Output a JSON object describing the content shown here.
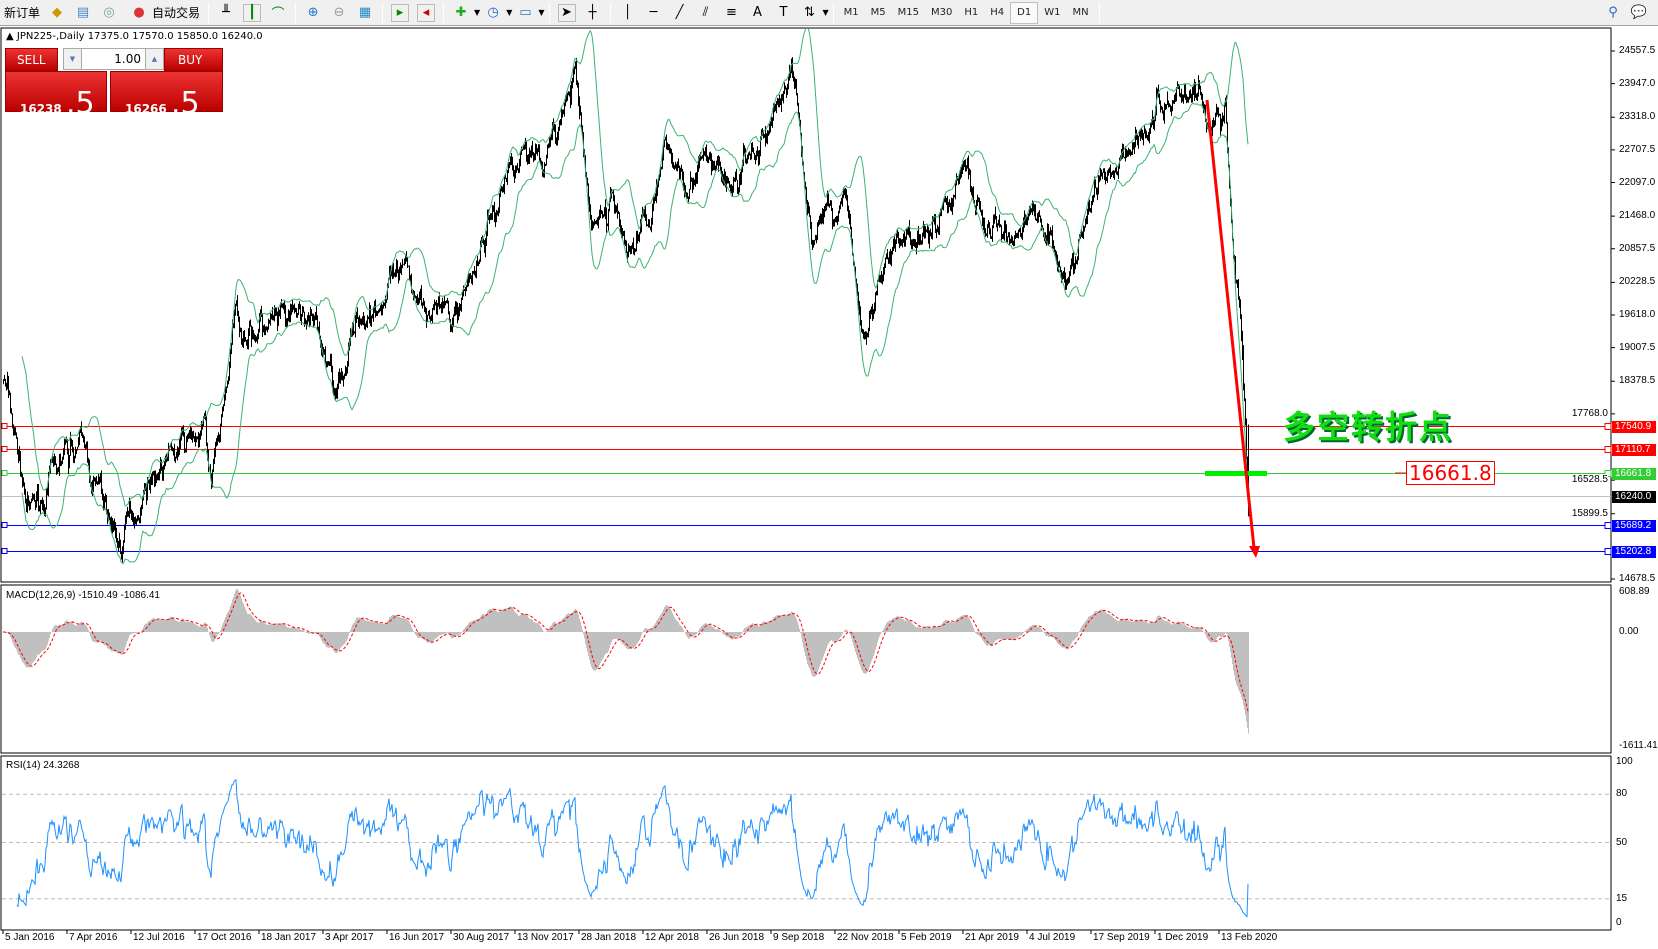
{
  "toolbar": {
    "new_order": "新订单",
    "auto_trading": "自动交易",
    "timeframes": [
      "M1",
      "M5",
      "M15",
      "M30",
      "H1",
      "H4",
      "D1",
      "W1",
      "MN"
    ],
    "active_timeframe": "D1"
  },
  "symbol_line": "JPN225-,Daily  17375.0 17570.0 15850.0 16240.0",
  "trade_panel": {
    "sell_label": "SELL",
    "buy_label": "BUY",
    "lots": "1.00",
    "sell_price_main": "16238",
    "sell_price_frac": ".5",
    "buy_price_main": "16266",
    "buy_price_frac": ".5"
  },
  "annotation": {
    "text": "多空转折点",
    "price_label": "16661.8",
    "color": "#10e010"
  },
  "chart_data": {
    "type": "candlestick",
    "symbol": "JPN225-",
    "timeframe": "Daily",
    "ohlc_last": {
      "open": 17375.0,
      "high": 17570.0,
      "low": 15850.0,
      "close": 16240.0
    },
    "ylim": [
      14678.5,
      24557.5
    ],
    "price_ticks": [
      "24557.5",
      "23947.0",
      "23318.0",
      "22707.5",
      "22097.0",
      "21468.0",
      "20857.5",
      "20228.5",
      "19618.0",
      "19007.5",
      "18378.5",
      "17768.0",
      "16528.5",
      "15899.5",
      "14678.5"
    ],
    "date_ticks": [
      "5 Jan 2016",
      "7 Apr 2016",
      "12 Jul 2016",
      "17 Oct 2016",
      "18 Jan 2017",
      "3 Apr 2017",
      "16 Jun 2017",
      "30 Aug 2017",
      "13 Nov 2017",
      "28 Jan 2018",
      "12 Apr 2018",
      "26 Jun 2018",
      "9 Sep 2018",
      "22 Nov 2018",
      "5 Feb 2019",
      "21 Apr 2019",
      "4 Jul 2019",
      "17 Sep 2019",
      "1 Dec 2019",
      "13 Feb 2020"
    ],
    "approx_close_path": [
      [
        "2016-01-05",
        18450
      ],
      [
        "2016-02-12",
        15800
      ],
      [
        "2016-03-30",
        16800
      ],
      [
        "2016-04-22",
        17300
      ],
      [
        "2016-06-24",
        15300
      ],
      [
        "2016-08-10",
        16700
      ],
      [
        "2016-10-30",
        17400
      ],
      [
        "2016-11-09",
        16300
      ],
      [
        "2016-12-14",
        19500
      ],
      [
        "2017-02-15",
        19300
      ],
      [
        "2017-03-15",
        19600
      ],
      [
        "2017-04-14",
        18400
      ],
      [
        "2017-05-20",
        19700
      ],
      [
        "2017-06-20",
        20100
      ],
      [
        "2017-08-08",
        20000
      ],
      [
        "2017-08-30",
        19400
      ],
      [
        "2017-10-05",
        21000
      ],
      [
        "2017-11-13",
        22700
      ],
      [
        "2017-12-28",
        22800
      ],
      [
        "2018-01-23",
        24000
      ],
      [
        "2018-02-09",
        21300
      ],
      [
        "2018-03-12",
        21700
      ],
      [
        "2018-03-26",
        20700
      ],
      [
        "2018-05-10",
        22500
      ],
      [
        "2018-06-28",
        22300
      ],
      [
        "2018-07-25",
        22000
      ],
      [
        "2018-08-30",
        22800
      ],
      [
        "2018-10-02",
        24300
      ],
      [
        "2018-10-26",
        21200
      ],
      [
        "2018-12-05",
        21900
      ],
      [
        "2018-12-25",
        19000
      ],
      [
        "2019-01-28",
        20600
      ],
      [
        "2019-03-20",
        21500
      ],
      [
        "2019-04-23",
        22300
      ],
      [
        "2019-05-20",
        21200
      ],
      [
        "2019-06-12",
        21100
      ],
      [
        "2019-07-15",
        21600
      ],
      [
        "2019-08-26",
        20400
      ],
      [
        "2019-09-05",
        21000
      ],
      [
        "2019-09-25",
        22000
      ],
      [
        "2019-10-25",
        22800
      ],
      [
        "2019-12-01",
        23400
      ],
      [
        "2019-12-27",
        23800
      ],
      [
        "2020-01-20",
        23900
      ],
      [
        "2020-02-03",
        23000
      ],
      [
        "2020-02-20",
        23500
      ],
      [
        "2020-02-28",
        21100
      ],
      [
        "2020-03-09",
        19500
      ],
      [
        "2020-03-17",
        16240
      ]
    ],
    "bands": {
      "type": "bollinger",
      "color": "#3cb371"
    },
    "horizontal_lines": [
      {
        "price": 17540.9,
        "label": "17540.9",
        "color": "#ff0000"
      },
      {
        "price": 17110.7,
        "label": "17110.7",
        "color": "#ff0000"
      },
      {
        "price": 16661.8,
        "label": "16661.8",
        "color": "#32cd32"
      },
      {
        "price": 16240.0,
        "label": "16240.0",
        "color": "#c0c0c0",
        "tag_color": "#000000"
      },
      {
        "price": 15689.2,
        "label": "15689.2",
        "color": "#0000ff"
      },
      {
        "price": 15202.8,
        "label": "15202.8",
        "color": "#0000ff"
      }
    ],
    "macd": {
      "label": "MACD(12,26,9) -1510.49 -1086.41",
      "ticks": [
        "608.89",
        "0.00",
        "-1611.41"
      ],
      "max": 608.89,
      "min": -1611.41,
      "hist_color": "#c0c0c0",
      "signal_color": "#ff0000"
    },
    "rsi": {
      "label": "RSI(14) 24.3268",
      "ticks": [
        "100",
        "80",
        "50",
        "15",
        "0"
      ],
      "levels": [
        80,
        50,
        15
      ],
      "color": "#1e90ff"
    }
  }
}
